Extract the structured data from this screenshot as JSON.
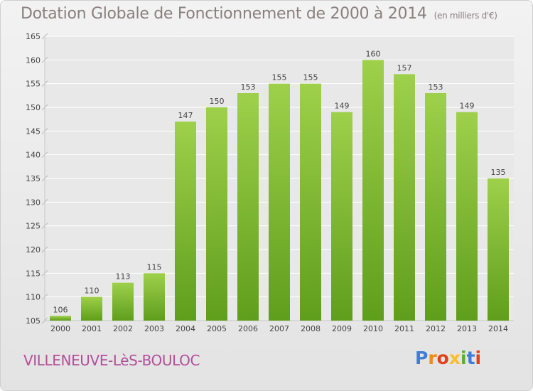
{
  "chart_data": {
    "type": "bar",
    "title": "Dotation Globale de Fonctionnement de 2000 à 2014",
    "subtitle": "(en milliers d'€)",
    "categories": [
      "2000",
      "2001",
      "2002",
      "2003",
      "2004",
      "2005",
      "2006",
      "2007",
      "2008",
      "2009",
      "2010",
      "2011",
      "2012",
      "2013",
      "2014"
    ],
    "values": [
      106,
      110,
      113,
      115,
      147,
      150,
      153,
      155,
      155,
      149,
      160,
      157,
      153,
      149,
      135
    ],
    "ylim": [
      105,
      165
    ],
    "yticks": [
      105,
      110,
      115,
      120,
      125,
      130,
      135,
      140,
      145,
      150,
      155,
      160,
      165
    ],
    "grid": true,
    "bar_color_top": "#9ed04b",
    "bar_color_bottom": "#5f9e1c"
  },
  "commune": "VILLENEUVE-LèS-BOULOC",
  "logo": {
    "text": "Proxiti",
    "colors": [
      "#3d7fd8",
      "#f08a1c",
      "#e0401c",
      "#f5c02a",
      "#56b12c",
      "#3d7fd8",
      "#e0401c"
    ]
  }
}
